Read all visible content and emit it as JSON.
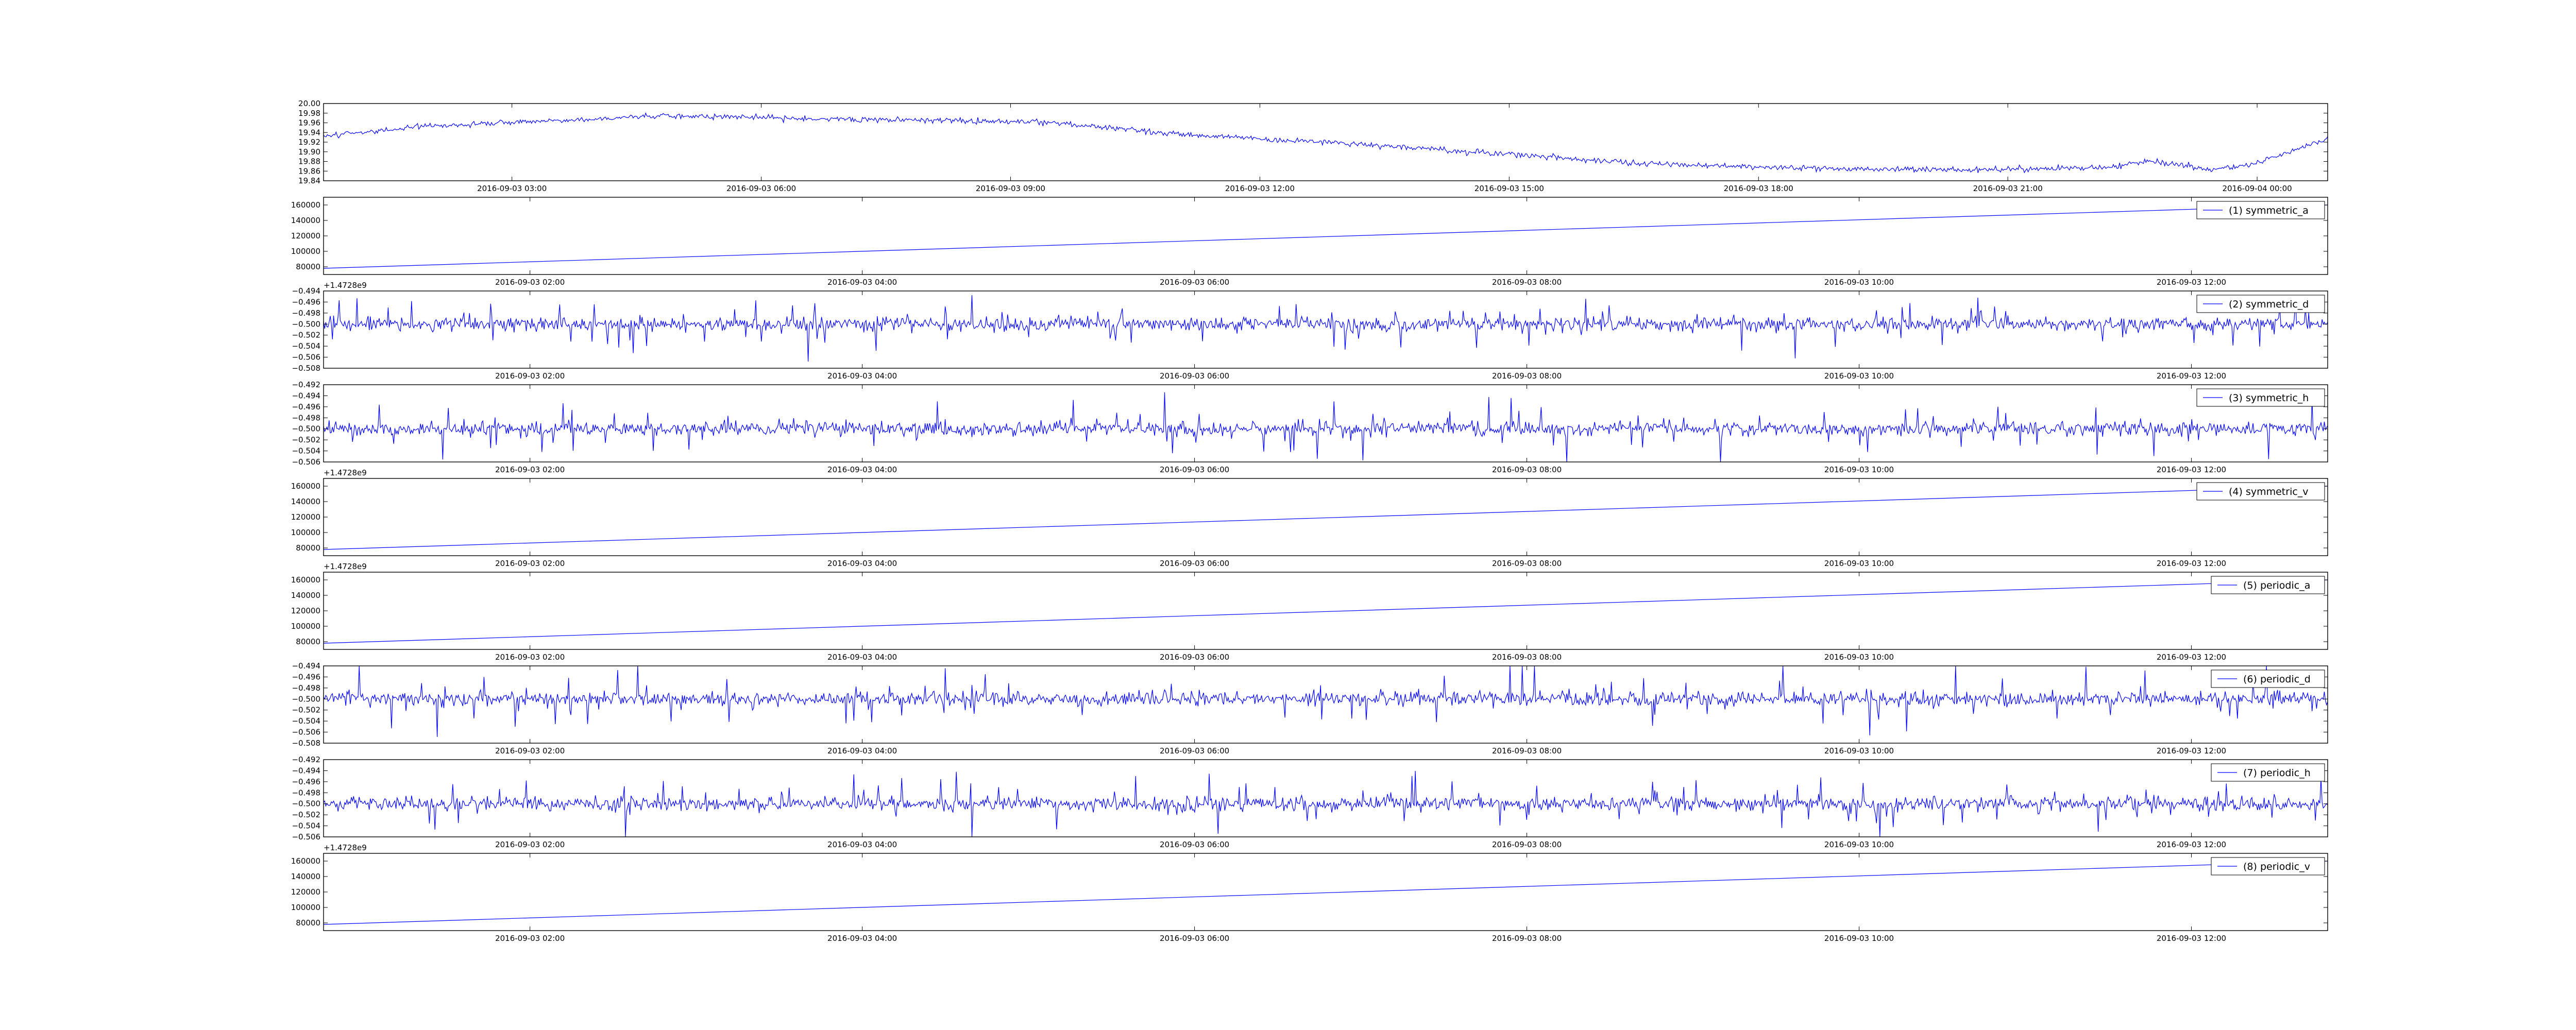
{
  "chart_data": [
    {
      "type": "line",
      "series": [
        {
          "name": "",
          "color": "#0000ff",
          "kind": "trend-top"
        }
      ],
      "x_ticks": [
        "2016-09-03 03:00",
        "2016-09-03 06:00",
        "2016-09-03 09:00",
        "2016-09-03 12:00",
        "2016-09-03 15:00",
        "2016-09-03 18:00",
        "2016-09-03 21:00",
        "2016-09-04 00:00"
      ],
      "y_ticks": [
        "20.00",
        "19.98",
        "19.96",
        "19.94",
        "19.92",
        "19.90",
        "19.88",
        "19.86",
        "19.84"
      ],
      "ylim": [
        19.84,
        20.0
      ],
      "offset_text": "",
      "legend": null
    },
    {
      "type": "line",
      "series": [
        {
          "name": "(1) symmetric_a",
          "color": "#0000ff",
          "kind": "linear",
          "start": 78000,
          "end": 160000
        }
      ],
      "x_ticks": [
        "2016-09-03 02:00",
        "2016-09-03 04:00",
        "2016-09-03 06:00",
        "2016-09-03 08:00",
        "2016-09-03 10:00",
        "2016-09-03 12:00"
      ],
      "y_ticks": [
        "160000",
        "140000",
        "120000",
        "100000",
        "80000"
      ],
      "ylim": [
        70000,
        170000
      ],
      "offset_text": "+1.4728e9",
      "legend": "top-right"
    },
    {
      "type": "line",
      "series": [
        {
          "name": "(2) symmetric_d",
          "color": "#0000ff",
          "kind": "noise",
          "base": -0.5
        }
      ],
      "x_ticks": [
        "2016-09-03 02:00",
        "2016-09-03 04:00",
        "2016-09-03 06:00",
        "2016-09-03 08:00",
        "2016-09-03 10:00",
        "2016-09-03 12:00"
      ],
      "y_ticks": [
        "−0.494",
        "−0.496",
        "−0.498",
        "−0.500",
        "−0.502",
        "−0.504",
        "−0.506",
        "−0.508"
      ],
      "ylim": [
        -0.508,
        -0.494
      ],
      "offset_text": "",
      "legend": "top-right"
    },
    {
      "type": "line",
      "series": [
        {
          "name": "(3) symmetric_h",
          "color": "#0000ff",
          "kind": "noise",
          "base": -0.5
        }
      ],
      "x_ticks": [
        "2016-09-03 02:00",
        "2016-09-03 04:00",
        "2016-09-03 06:00",
        "2016-09-03 08:00",
        "2016-09-03 10:00",
        "2016-09-03 12:00"
      ],
      "y_ticks": [
        "−0.492",
        "−0.494",
        "−0.496",
        "−0.498",
        "−0.500",
        "−0.502",
        "−0.504",
        "−0.506"
      ],
      "ylim": [
        -0.506,
        -0.492
      ],
      "offset_text": "+1.4728e9",
      "legend": "top-right"
    },
    {
      "type": "line",
      "series": [
        {
          "name": "(4) symmetric_v",
          "color": "#0000ff",
          "kind": "linear",
          "start": 78000,
          "end": 160000
        }
      ],
      "x_ticks": [
        "2016-09-03 02:00",
        "2016-09-03 04:00",
        "2016-09-03 06:00",
        "2016-09-03 08:00",
        "2016-09-03 10:00",
        "2016-09-03 12:00"
      ],
      "y_ticks": [
        "160000",
        "140000",
        "120000",
        "100000",
        "80000"
      ],
      "ylim": [
        70000,
        170000
      ],
      "offset_text": "+1.4728e9",
      "legend": "top-right"
    },
    {
      "type": "line",
      "series": [
        {
          "name": "(5) periodic_a",
          "color": "#0000ff",
          "kind": "linear",
          "start": 78000,
          "end": 160000
        }
      ],
      "x_ticks": [
        "2016-09-03 02:00",
        "2016-09-03 04:00",
        "2016-09-03 06:00",
        "2016-09-03 08:00",
        "2016-09-03 10:00",
        "2016-09-03 12:00"
      ],
      "y_ticks": [
        "160000",
        "140000",
        "120000",
        "100000",
        "80000"
      ],
      "ylim": [
        70000,
        170000
      ],
      "offset_text": "",
      "legend": "top-right"
    },
    {
      "type": "line",
      "series": [
        {
          "name": "(6) periodic_d",
          "color": "#0000ff",
          "kind": "noise",
          "base": -0.5
        }
      ],
      "x_ticks": [
        "2016-09-03 02:00",
        "2016-09-03 04:00",
        "2016-09-03 06:00",
        "2016-09-03 08:00",
        "2016-09-03 10:00",
        "2016-09-03 12:00"
      ],
      "y_ticks": [
        "−0.494",
        "−0.496",
        "−0.498",
        "−0.500",
        "−0.502",
        "−0.504",
        "−0.506",
        "−0.508"
      ],
      "ylim": [
        -0.508,
        -0.494
      ],
      "offset_text": "",
      "legend": "top-right"
    },
    {
      "type": "line",
      "series": [
        {
          "name": "(7) periodic_h",
          "color": "#0000ff",
          "kind": "noise",
          "base": -0.5
        }
      ],
      "x_ticks": [
        "2016-09-03 02:00",
        "2016-09-03 04:00",
        "2016-09-03 06:00",
        "2016-09-03 08:00",
        "2016-09-03 10:00",
        "2016-09-03 12:00"
      ],
      "y_ticks": [
        "−0.492",
        "−0.494",
        "−0.496",
        "−0.498",
        "−0.500",
        "−0.502",
        "−0.504",
        "−0.506"
      ],
      "ylim": [
        -0.506,
        -0.492
      ],
      "offset_text": "+1.4728e9",
      "legend": "top-right"
    },
    {
      "type": "line",
      "series": [
        {
          "name": "(8) periodic_v",
          "color": "#0000ff",
          "kind": "linear",
          "start": 78000,
          "end": 160000
        }
      ],
      "x_ticks": [
        "2016-09-03 02:00",
        "2016-09-03 04:00",
        "2016-09-03 06:00",
        "2016-09-03 08:00",
        "2016-09-03 10:00",
        "2016-09-03 12:00"
      ],
      "y_ticks": [
        "160000",
        "140000",
        "120000",
        "100000",
        "80000"
      ],
      "ylim": [
        70000,
        170000
      ],
      "offset_text": "",
      "legend": "top-right"
    }
  ]
}
